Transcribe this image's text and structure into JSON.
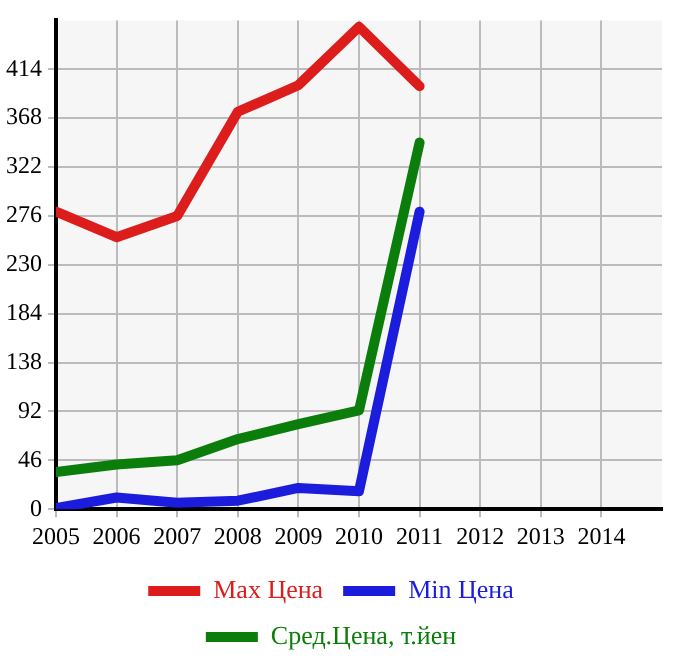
{
  "chart_data": {
    "type": "line",
    "x": [
      2005,
      2006,
      2007,
      2008,
      2009,
      2010,
      2011
    ],
    "series": [
      {
        "name": "Max Цена",
        "color": "#dd1c1c",
        "values": [
          280,
          256,
          276,
          374,
          399,
          454,
          398
        ]
      },
      {
        "name": "Min Цена",
        "color": "#1c1cdd",
        "values": [
          1,
          11,
          6,
          8,
          20,
          17,
          280
        ]
      },
      {
        "name": "Сред.Цена, т.йен",
        "color": "#0a7d0a",
        "values": [
          35,
          42,
          46,
          66,
          80,
          93,
          345
        ]
      }
    ],
    "xlim": [
      2005,
      2015
    ],
    "xticks": [
      2005,
      2006,
      2007,
      2008,
      2009,
      2010,
      2011,
      2012,
      2013,
      2014
    ],
    "ylim": [
      0,
      460
    ],
    "yticks": [
      0,
      46,
      92,
      138,
      184,
      230,
      276,
      322,
      368,
      414
    ],
    "grid": true,
    "legend": "bottom",
    "marker": "none",
    "line_style": "solid"
  }
}
